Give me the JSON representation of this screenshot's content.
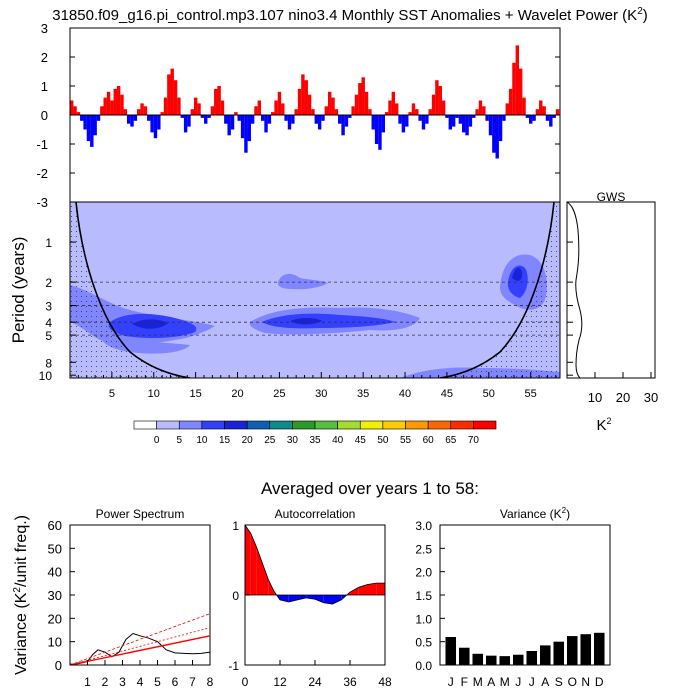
{
  "title": "31850.f09_g16.pi_control.mp3.107 nino3.4 Monthly SST Anomalies + Wavelet Power (K",
  "title_sup": "2",
  "title_close": ")",
  "subtitle": "Averaged over years 1 to 58:",
  "colors": {
    "positive": "#ff0000",
    "negative": "#0000ff",
    "wavelet_base": "#b8bcff",
    "wavelet_mid": "#7f86ff",
    "wavelet_high": "#3340ff",
    "wavelet_peak": "#1a22d9"
  },
  "chart_data": [
    {
      "type": "bar",
      "name": "sst-anomaly",
      "ylim": [
        -3,
        3
      ],
      "yticks": [
        3,
        2,
        1,
        0,
        -1,
        -2,
        -3
      ],
      "x_years": [
        0,
        58.5
      ],
      "bars": [
        [
          0,
          0.5
        ],
        [
          0.4,
          0.3
        ],
        [
          0.8,
          0.1
        ],
        [
          1.2,
          -0.2
        ],
        [
          1.6,
          -0.5
        ],
        [
          2.0,
          -0.9
        ],
        [
          2.4,
          -1.1
        ],
        [
          2.8,
          -0.7
        ],
        [
          3.2,
          -0.2
        ],
        [
          3.6,
          0.3
        ],
        [
          4.0,
          0.6
        ],
        [
          4.4,
          0.8
        ],
        [
          4.8,
          0.5
        ],
        [
          5.2,
          0.9
        ],
        [
          5.6,
          1.0
        ],
        [
          6.0,
          0.7
        ],
        [
          6.4,
          0.2
        ],
        [
          6.8,
          -0.3
        ],
        [
          7.2,
          -0.4
        ],
        [
          7.6,
          -0.2
        ],
        [
          8.0,
          0.2
        ],
        [
          8.4,
          0.4
        ],
        [
          8.8,
          0.3
        ],
        [
          9.2,
          -0.2
        ],
        [
          9.6,
          -0.6
        ],
        [
          10.0,
          -0.8
        ],
        [
          10.4,
          -0.5
        ],
        [
          10.8,
          0.1
        ],
        [
          11.2,
          0.6
        ],
        [
          11.6,
          1.4
        ],
        [
          12.0,
          1.6
        ],
        [
          12.4,
          1.2
        ],
        [
          12.8,
          0.6
        ],
        [
          13.2,
          -0.1
        ],
        [
          13.6,
          -0.6
        ],
        [
          14.0,
          -0.4
        ],
        [
          14.4,
          0.2
        ],
        [
          14.8,
          0.6
        ],
        [
          15.2,
          0.4
        ],
        [
          15.6,
          -0.1
        ],
        [
          16.0,
          -0.3
        ],
        [
          16.4,
          -0.1
        ],
        [
          16.8,
          0.3
        ],
        [
          17.2,
          0.9
        ],
        [
          17.6,
          1.0
        ],
        [
          18.0,
          0.5
        ],
        [
          18.4,
          -0.3
        ],
        [
          18.8,
          -0.7
        ],
        [
          19.2,
          -0.5
        ],
        [
          19.6,
          0.1
        ],
        [
          20.0,
          -0.2
        ],
        [
          20.4,
          -0.8
        ],
        [
          20.8,
          -1.3
        ],
        [
          21.2,
          -0.9
        ],
        [
          21.6,
          -0.3
        ],
        [
          22.0,
          0.3
        ],
        [
          22.4,
          0.5
        ],
        [
          22.8,
          -0.2
        ],
        [
          23.2,
          -0.6
        ],
        [
          23.6,
          -0.3
        ],
        [
          24.0,
          0.1
        ],
        [
          24.4,
          0.5
        ],
        [
          24.8,
          0.8
        ],
        [
          25.2,
          0.4
        ],
        [
          25.6,
          -0.2
        ],
        [
          26.0,
          -0.5
        ],
        [
          26.4,
          -0.3
        ],
        [
          26.8,
          0.2
        ],
        [
          27.2,
          0.9
        ],
        [
          27.6,
          1.4
        ],
        [
          28.0,
          1.2
        ],
        [
          28.4,
          0.7
        ],
        [
          28.8,
          0.2
        ],
        [
          29.2,
          -0.3
        ],
        [
          29.6,
          -0.5
        ],
        [
          30.0,
          -0.2
        ],
        [
          30.4,
          0.3
        ],
        [
          30.8,
          0.8
        ],
        [
          31.2,
          0.6
        ],
        [
          31.6,
          0.2
        ],
        [
          32.0,
          -0.3
        ],
        [
          32.4,
          -0.7
        ],
        [
          32.8,
          -0.4
        ],
        [
          33.2,
          -0.1
        ],
        [
          33.6,
          0.3
        ],
        [
          34.0,
          0.7
        ],
        [
          34.4,
          1.1
        ],
        [
          34.8,
          1.3
        ],
        [
          35.2,
          0.8
        ],
        [
          35.6,
          0.2
        ],
        [
          36.0,
          -0.5
        ],
        [
          36.4,
          -1.0
        ],
        [
          36.8,
          -1.2
        ],
        [
          37.2,
          -0.6
        ],
        [
          37.6,
          0.1
        ],
        [
          38.0,
          0.5
        ],
        [
          38.4,
          0.8
        ],
        [
          38.8,
          0.4
        ],
        [
          39.2,
          -0.3
        ],
        [
          39.6,
          -0.6
        ],
        [
          40.0,
          -0.4
        ],
        [
          40.4,
          0.1
        ],
        [
          40.8,
          0.4
        ],
        [
          41.2,
          0.2
        ],
        [
          41.6,
          -0.2
        ],
        [
          42.0,
          -0.5
        ],
        [
          42.4,
          -0.3
        ],
        [
          42.8,
          0.2
        ],
        [
          43.2,
          0.7
        ],
        [
          43.6,
          1.2
        ],
        [
          44.0,
          1.0
        ],
        [
          44.4,
          0.5
        ],
        [
          44.8,
          -0.1
        ],
        [
          45.2,
          -0.5
        ],
        [
          45.6,
          -0.4
        ],
        [
          46.0,
          -0.1
        ],
        [
          46.4,
          -0.3
        ],
        [
          46.8,
          -0.6
        ],
        [
          47.2,
          -0.7
        ],
        [
          47.6,
          -0.4
        ],
        [
          48.0,
          -0.1
        ],
        [
          48.4,
          0.2
        ],
        [
          48.8,
          0.5
        ],
        [
          49.2,
          0.3
        ],
        [
          49.6,
          -0.2
        ],
        [
          50.0,
          -0.7
        ],
        [
          50.4,
          -1.3
        ],
        [
          50.8,
          -1.5
        ],
        [
          51.2,
          -0.9
        ],
        [
          51.6,
          -0.2
        ],
        [
          52.0,
          0.4
        ],
        [
          52.4,
          0.9
        ],
        [
          52.8,
          1.8
        ],
        [
          53.2,
          2.4
        ],
        [
          53.6,
          1.6
        ],
        [
          54.0,
          0.6
        ],
        [
          54.4,
          -0.1
        ],
        [
          54.8,
          -0.3
        ],
        [
          55.2,
          -0.2
        ],
        [
          55.6,
          0.2
        ],
        [
          56.0,
          0.5
        ],
        [
          56.4,
          0.3
        ],
        [
          56.8,
          -0.2
        ],
        [
          57.2,
          -0.4
        ],
        [
          57.6,
          -0.1
        ],
        [
          58.0,
          0.2
        ]
      ]
    },
    {
      "type": "heatmap",
      "name": "wavelet-power",
      "xlabel": "",
      "ylabel": "Period (years)",
      "xticks": [
        5,
        10,
        15,
        20,
        25,
        30,
        35,
        40,
        45,
        50,
        55
      ],
      "yticks": [
        1,
        2,
        3,
        4,
        5,
        8,
        10
      ],
      "ylim": [
        0.5,
        10.5
      ],
      "ylog": true,
      "dashed_periods": [
        2,
        3,
        4,
        5
      ],
      "colorbar_levels": [
        "0",
        "5",
        "10",
        "15",
        "20",
        "25",
        "30",
        "35",
        "40",
        "45",
        "50",
        "55",
        "60",
        "65",
        "70"
      ],
      "colorbar_colors": [
        "#ffffff",
        "#b8bcff",
        "#7f86ff",
        "#3340ff",
        "#1a22d9",
        "#0f5fb3",
        "#0e8a8a",
        "#2a9a2a",
        "#55c040",
        "#a5dd2a",
        "#f0f000",
        "#ffcc00",
        "#ff9900",
        "#ff6600",
        "#ff2b00",
        "#ff0000"
      ]
    },
    {
      "type": "line",
      "name": "gws",
      "title": "GWS",
      "xlabel": "K",
      "xlabel_sup": "2",
      "xticks": [
        10,
        20,
        30
      ],
      "xlim": [
        0,
        30
      ]
    },
    {
      "type": "line",
      "name": "power-spectrum",
      "title": "Power Spectrum",
      "ylabel": "Variance (K",
      "ylabel_sup": "2",
      "ylabel_close": "/unit freq.)",
      "xticks": [
        "1",
        "2",
        "3",
        "4",
        "5",
        "6",
        "7",
        "8"
      ],
      "yticks": [
        "0",
        "10",
        "20",
        "30",
        "40",
        "50",
        "60"
      ],
      "xlim": [
        0,
        8
      ],
      "ylim": [
        0,
        60
      ],
      "series": [
        {
          "values": [
            [
              0,
              0.3
            ],
            [
              0.5,
              0.6
            ],
            [
              1.0,
              1.5
            ],
            [
              1.3,
              4.5
            ],
            [
              1.6,
              6.5
            ],
            [
              2.0,
              5.5
            ],
            [
              2.4,
              3.5
            ],
            [
              2.8,
              5.5
            ],
            [
              3.2,
              11.0
            ],
            [
              3.6,
              13.5
            ],
            [
              4.0,
              12.5
            ],
            [
              4.5,
              11.5
            ],
            [
              5.0,
              10.0
            ],
            [
              5.5,
              6.5
            ],
            [
              6.0,
              5.2
            ],
            [
              6.5,
              5.0
            ],
            [
              7.0,
              4.8
            ],
            [
              7.5,
              5.0
            ],
            [
              8.0,
              5.5
            ]
          ]
        },
        {
          "values": [
            [
              0,
              0
            ],
            [
              8,
              12.5
            ]
          ]
        },
        {
          "values": [
            [
              0,
              0
            ],
            [
              8,
              22
            ]
          ]
        },
        {
          "values": [
            [
              0,
              0
            ],
            [
              8,
              16
            ]
          ]
        }
      ]
    },
    {
      "type": "area",
      "name": "autocorrelation",
      "title": "Autocorrelation",
      "xticks": [
        "0",
        "12",
        "24",
        "36",
        "48"
      ],
      "yticks": [
        "1",
        "0",
        "-1"
      ],
      "xlim": [
        0,
        48
      ],
      "ylim": [
        -1,
        1
      ],
      "values": [
        [
          0,
          1.0
        ],
        [
          2,
          0.88
        ],
        [
          4,
          0.68
        ],
        [
          6,
          0.45
        ],
        [
          8,
          0.22
        ],
        [
          10,
          0.05
        ],
        [
          12,
          -0.07
        ],
        [
          15,
          -0.1
        ],
        [
          18,
          -0.07
        ],
        [
          21,
          -0.04
        ],
        [
          24,
          -0.06
        ],
        [
          27,
          -0.11
        ],
        [
          30,
          -0.13
        ],
        [
          33,
          -0.07
        ],
        [
          36,
          0.04
        ],
        [
          39,
          0.11
        ],
        [
          42,
          0.15
        ],
        [
          45,
          0.17
        ],
        [
          48,
          0.17
        ]
      ]
    },
    {
      "type": "bar",
      "name": "variance",
      "title": "Variance (K",
      "title_sup": "2",
      "title_close": ")",
      "categories": [
        "J",
        "F",
        "M",
        "A",
        "M",
        "J",
        "J",
        "A",
        "S",
        "O",
        "N",
        "D"
      ],
      "values": [
        0.6,
        0.37,
        0.24,
        0.2,
        0.19,
        0.22,
        0.3,
        0.42,
        0.5,
        0.62,
        0.66,
        0.69
      ],
      "yticks": [
        "3.0",
        "2.5",
        "2.0",
        "1.5",
        "1.0",
        "0.5",
        "0.0"
      ],
      "ylim": [
        0,
        3.0
      ]
    }
  ]
}
